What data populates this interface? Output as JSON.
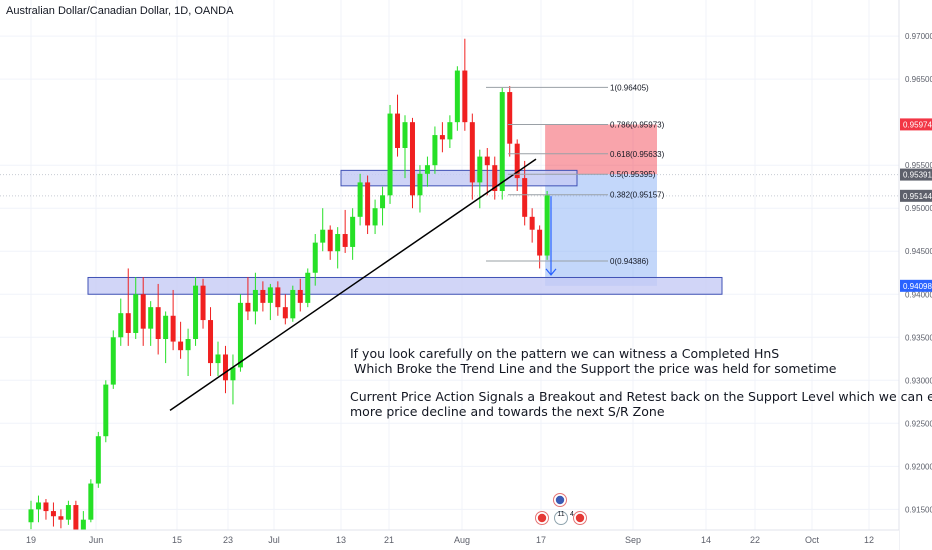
{
  "symbol_title": "Australian Dollar/Canadian Dollar, 1D, OANDA",
  "chart_data": {
    "type": "candlestick",
    "title": "Australian Dollar/Canadian Dollar, 1D, OANDA",
    "ylim": [
      0.9126,
      0.9742
    ],
    "y_ticks": [
      "0.97000",
      "0.96500",
      "0.95500",
      "0.95000",
      "0.94500",
      "0.94000",
      "0.93500",
      "0.93000",
      "0.92500",
      "0.92000",
      "0.91500"
    ],
    "x_ticks": [
      "19",
      "Jun",
      "15",
      "23",
      "Jul",
      "13",
      "21",
      "Aug",
      "17",
      "Sep",
      "14",
      "22",
      "Oct",
      "12"
    ],
    "price_labels": [
      {
        "value": "0.95974",
        "color": "#f23645"
      },
      {
        "value": "0.95391",
        "color": "#5d606b"
      },
      {
        "value": "0.95144",
        "color": "#5d606b"
      },
      {
        "value": "0.94098",
        "color": "#2962ff"
      }
    ],
    "fib_levels": [
      {
        "ratio": "1",
        "value": 0.96405,
        "label": "1(0.96405)"
      },
      {
        "ratio": "0.786",
        "value": 0.95973,
        "label": "0.786(0.95973)"
      },
      {
        "ratio": "0.618",
        "value": 0.95633,
        "label": "0.618(0.95633)"
      },
      {
        "ratio": "0.5",
        "value": 0.95395,
        "label": "0.5(0.95395)"
      },
      {
        "ratio": "0.382",
        "value": 0.95157,
        "label": "0.382(0.95157)"
      },
      {
        "ratio": "0",
        "value": 0.94386,
        "label": "0(0.94386)"
      }
    ],
    "candles": [
      {
        "o": 0.9135,
        "h": 0.916,
        "l": 0.9127,
        "c": 0.915
      },
      {
        "o": 0.915,
        "h": 0.9166,
        "l": 0.9135,
        "c": 0.9158
      },
      {
        "o": 0.9158,
        "h": 0.9162,
        "l": 0.9138,
        "c": 0.9148
      },
      {
        "o": 0.9148,
        "h": 0.9158,
        "l": 0.913,
        "c": 0.9142
      },
      {
        "o": 0.9142,
        "h": 0.915,
        "l": 0.9128,
        "c": 0.9138
      },
      {
        "o": 0.9138,
        "h": 0.916,
        "l": 0.9132,
        "c": 0.9155
      },
      {
        "o": 0.9155,
        "h": 0.916,
        "l": 0.912,
        "c": 0.9125
      },
      {
        "o": 0.9125,
        "h": 0.9148,
        "l": 0.9118,
        "c": 0.9138
      },
      {
        "o": 0.9138,
        "h": 0.9185,
        "l": 0.9135,
        "c": 0.918
      },
      {
        "o": 0.918,
        "h": 0.924,
        "l": 0.9175,
        "c": 0.9235
      },
      {
        "o": 0.9235,
        "h": 0.93,
        "l": 0.9228,
        "c": 0.9295
      },
      {
        "o": 0.9295,
        "h": 0.9358,
        "l": 0.929,
        "c": 0.935
      },
      {
        "o": 0.935,
        "h": 0.9395,
        "l": 0.934,
        "c": 0.9378
      },
      {
        "o": 0.9378,
        "h": 0.943,
        "l": 0.934,
        "c": 0.9355
      },
      {
        "o": 0.9355,
        "h": 0.942,
        "l": 0.9348,
        "c": 0.94
      },
      {
        "o": 0.94,
        "h": 0.942,
        "l": 0.934,
        "c": 0.936
      },
      {
        "o": 0.936,
        "h": 0.9392,
        "l": 0.934,
        "c": 0.9385
      },
      {
        "o": 0.9385,
        "h": 0.9412,
        "l": 0.933,
        "c": 0.9348
      },
      {
        "o": 0.9348,
        "h": 0.938,
        "l": 0.932,
        "c": 0.9375
      },
      {
        "o": 0.9375,
        "h": 0.9405,
        "l": 0.9335,
        "c": 0.9345
      },
      {
        "o": 0.9345,
        "h": 0.9368,
        "l": 0.9325,
        "c": 0.9335
      },
      {
        "o": 0.9335,
        "h": 0.936,
        "l": 0.9305,
        "c": 0.9348
      },
      {
        "o": 0.9348,
        "h": 0.942,
        "l": 0.934,
        "c": 0.941
      },
      {
        "o": 0.941,
        "h": 0.9418,
        "l": 0.936,
        "c": 0.937
      },
      {
        "o": 0.937,
        "h": 0.9385,
        "l": 0.9305,
        "c": 0.932
      },
      {
        "o": 0.932,
        "h": 0.9345,
        "l": 0.9305,
        "c": 0.933
      },
      {
        "o": 0.933,
        "h": 0.934,
        "l": 0.9285,
        "c": 0.93
      },
      {
        "o": 0.93,
        "h": 0.933,
        "l": 0.9272,
        "c": 0.9315
      },
      {
        "o": 0.9315,
        "h": 0.94,
        "l": 0.931,
        "c": 0.939
      },
      {
        "o": 0.939,
        "h": 0.942,
        "l": 0.937,
        "c": 0.938
      },
      {
        "o": 0.938,
        "h": 0.9425,
        "l": 0.9365,
        "c": 0.9405
      },
      {
        "o": 0.9405,
        "h": 0.9415,
        "l": 0.938,
        "c": 0.939
      },
      {
        "o": 0.939,
        "h": 0.9412,
        "l": 0.937,
        "c": 0.9408
      },
      {
        "o": 0.9408,
        "h": 0.9415,
        "l": 0.9375,
        "c": 0.9385
      },
      {
        "o": 0.9385,
        "h": 0.94,
        "l": 0.9365,
        "c": 0.9372
      },
      {
        "o": 0.9372,
        "h": 0.941,
        "l": 0.9368,
        "c": 0.9405
      },
      {
        "o": 0.9405,
        "h": 0.9418,
        "l": 0.938,
        "c": 0.939
      },
      {
        "o": 0.939,
        "h": 0.943,
        "l": 0.9385,
        "c": 0.9425
      },
      {
        "o": 0.9425,
        "h": 0.947,
        "l": 0.941,
        "c": 0.946
      },
      {
        "o": 0.946,
        "h": 0.95,
        "l": 0.945,
        "c": 0.9475
      },
      {
        "o": 0.9475,
        "h": 0.948,
        "l": 0.944,
        "c": 0.945
      },
      {
        "o": 0.945,
        "h": 0.9478,
        "l": 0.943,
        "c": 0.947
      },
      {
        "o": 0.947,
        "h": 0.9498,
        "l": 0.9448,
        "c": 0.9455
      },
      {
        "o": 0.9455,
        "h": 0.95,
        "l": 0.944,
        "c": 0.949
      },
      {
        "o": 0.949,
        "h": 0.954,
        "l": 0.948,
        "c": 0.953
      },
      {
        "o": 0.953,
        "h": 0.9538,
        "l": 0.947,
        "c": 0.948
      },
      {
        "o": 0.948,
        "h": 0.951,
        "l": 0.947,
        "c": 0.95
      },
      {
        "o": 0.95,
        "h": 0.9525,
        "l": 0.948,
        "c": 0.9515
      },
      {
        "o": 0.9515,
        "h": 0.962,
        "l": 0.9505,
        "c": 0.961
      },
      {
        "o": 0.961,
        "h": 0.9632,
        "l": 0.956,
        "c": 0.957
      },
      {
        "o": 0.957,
        "h": 0.9608,
        "l": 0.9535,
        "c": 0.96
      },
      {
        "o": 0.96,
        "h": 0.9605,
        "l": 0.95,
        "c": 0.9515
      },
      {
        "o": 0.9515,
        "h": 0.955,
        "l": 0.9495,
        "c": 0.954
      },
      {
        "o": 0.954,
        "h": 0.956,
        "l": 0.9525,
        "c": 0.955
      },
      {
        "o": 0.955,
        "h": 0.9595,
        "l": 0.954,
        "c": 0.9585
      },
      {
        "o": 0.9585,
        "h": 0.96,
        "l": 0.9565,
        "c": 0.958
      },
      {
        "o": 0.958,
        "h": 0.9608,
        "l": 0.957,
        "c": 0.96
      },
      {
        "o": 0.96,
        "h": 0.9665,
        "l": 0.959,
        "c": 0.966
      },
      {
        "o": 0.966,
        "h": 0.9697,
        "l": 0.959,
        "c": 0.96
      },
      {
        "o": 0.96,
        "h": 0.961,
        "l": 0.951,
        "c": 0.953
      },
      {
        "o": 0.953,
        "h": 0.9568,
        "l": 0.95,
        "c": 0.956
      },
      {
        "o": 0.956,
        "h": 0.957,
        "l": 0.9515,
        "c": 0.955
      },
      {
        "o": 0.955,
        "h": 0.956,
        "l": 0.951,
        "c": 0.952
      },
      {
        "o": 0.952,
        "h": 0.964,
        "l": 0.951,
        "c": 0.9635
      },
      {
        "o": 0.9635,
        "h": 0.9642,
        "l": 0.956,
        "c": 0.9575
      },
      {
        "o": 0.9575,
        "h": 0.958,
        "l": 0.952,
        "c": 0.9535
      },
      {
        "o": 0.9535,
        "h": 0.9555,
        "l": 0.948,
        "c": 0.949
      },
      {
        "o": 0.949,
        "h": 0.95,
        "l": 0.946,
        "c": 0.9475
      },
      {
        "o": 0.9475,
        "h": 0.948,
        "l": 0.943,
        "c": 0.9445
      },
      {
        "o": 0.9445,
        "h": 0.952,
        "l": 0.944,
        "c": 0.9515
      }
    ]
  },
  "annotation": {
    "line1": "If you look carefully on the pattern we can witness a Completed HnS",
    "line2": "Which Broke the Trend Line and the Support the price was held for sometime",
    "line3": "Current Price Action Signals a Breakout and Retest back on the Support Level which we can expect",
    "line4": "more price decline and towards the next S/R Zone"
  },
  "events": {
    "badge": "11",
    "badge2": "4"
  },
  "colors": {
    "up": "#26e026",
    "down": "#f02020",
    "zone_fill": "#c5cbf5",
    "zone_stroke": "#3f51b5",
    "fib": "#9aa0a6",
    "trend": "#000000",
    "arrow": "#2962ff"
  }
}
